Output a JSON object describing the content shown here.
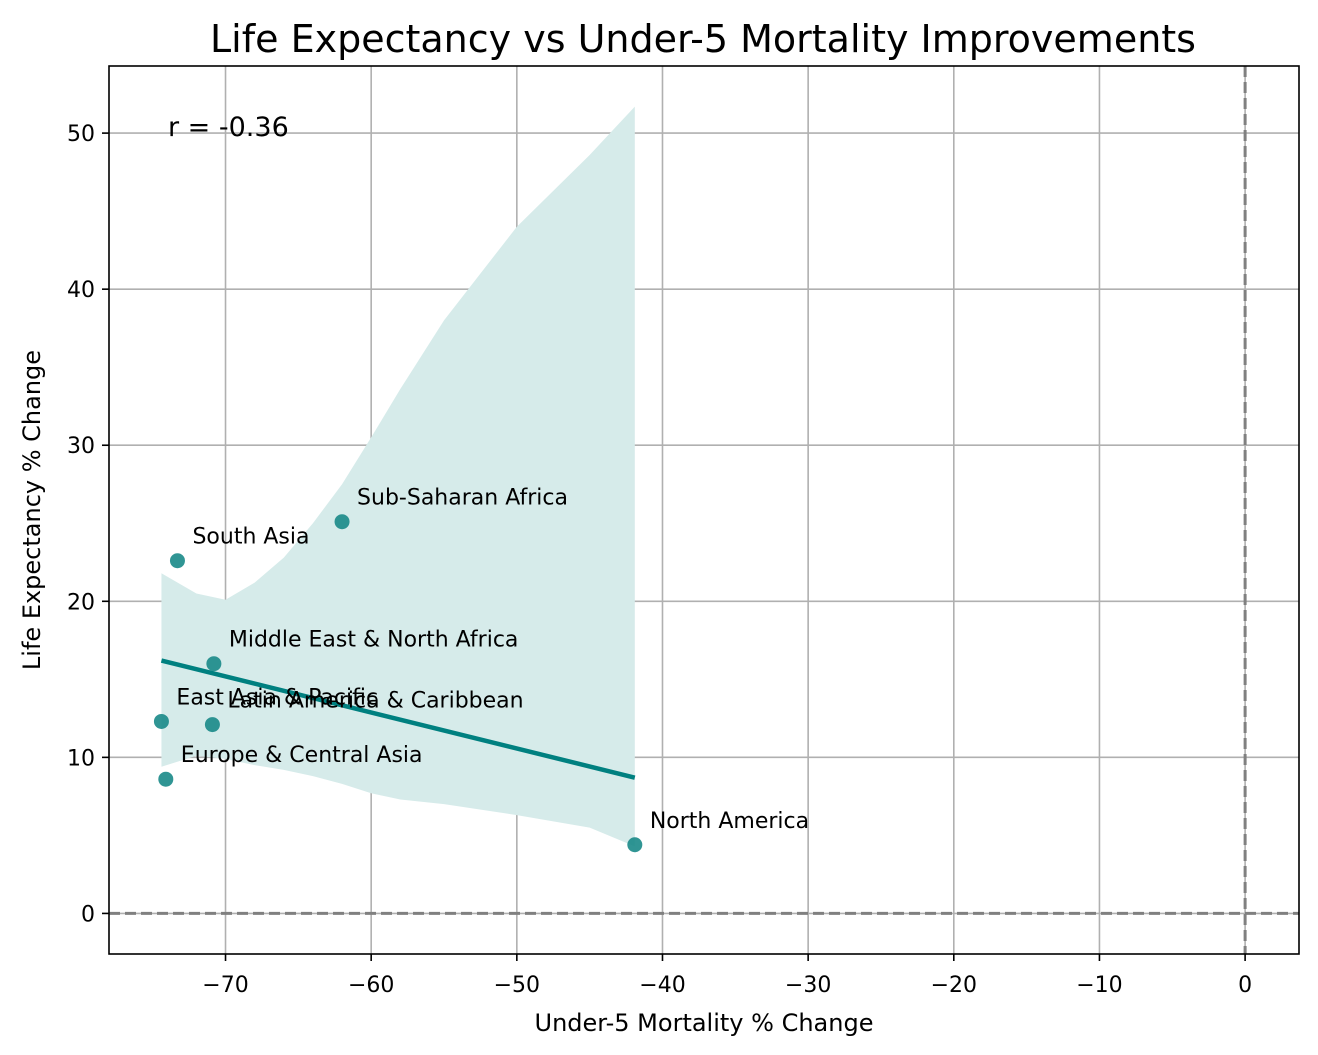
{
  "chart_data": {
    "type": "scatter",
    "title": "Life Expectancy vs Under-5 Mortality Improvements",
    "xlabel": "Under-5 Mortality % Change",
    "ylabel": "Life Expectancy % Change",
    "xlim": [
      -78,
      3.7
    ],
    "ylim": [
      -2.6,
      54.3
    ],
    "xticks": [
      -70,
      -60,
      -50,
      -40,
      -30,
      -20,
      -10,
      0
    ],
    "xtick_labels": [
      "−70",
      "−60",
      "−50",
      "−40",
      "−30",
      "−20",
      "−10",
      "0"
    ],
    "yticks": [
      0,
      10,
      20,
      30,
      40,
      50
    ],
    "ytick_labels": [
      "0",
      "10",
      "20",
      "30",
      "40",
      "50"
    ],
    "grid": true,
    "annotation": "r = -0.36",
    "colors": {
      "points": "#1a8a88",
      "line": "#008080",
      "band": "#d6ebea",
      "reference": "#808080"
    },
    "points": [
      {
        "label": "East Asia & Pacific",
        "x": -74.4,
        "y": 12.3
      },
      {
        "label": "Europe & Central Asia",
        "x": -74.1,
        "y": 8.6
      },
      {
        "label": "Latin America & Caribbean",
        "x": -70.9,
        "y": 12.1
      },
      {
        "label": "Middle East & North Africa",
        "x": -70.8,
        "y": 16.0
      },
      {
        "label": "North America",
        "x": -41.9,
        "y": 4.4
      },
      {
        "label": "South Asia",
        "x": -73.3,
        "y": 22.6
      },
      {
        "label": "Sub-Saharan Africa",
        "x": -62.0,
        "y": 25.1
      }
    ],
    "regression_line": {
      "x": [
        -74.4,
        -41.9
      ],
      "y": [
        16.2,
        8.7
      ]
    },
    "confidence_band": {
      "x": [
        -74.4,
        -72.0,
        -70.0,
        -68.0,
        -66.0,
        -64.0,
        -62.0,
        -60.0,
        -58.0,
        -55.0,
        -50.0,
        -45.0,
        -41.9
      ],
      "upper": [
        21.8,
        20.5,
        20.1,
        21.2,
        22.8,
        25.0,
        27.5,
        30.5,
        33.6,
        38.0,
        44.0,
        48.6,
        51.7
      ],
      "lower": [
        9.4,
        10.1,
        9.9,
        9.5,
        9.2,
        8.8,
        8.3,
        7.7,
        7.3,
        7.0,
        6.3,
        5.5,
        4.3
      ]
    },
    "reference_lines": {
      "x": 0,
      "y": 0
    }
  }
}
